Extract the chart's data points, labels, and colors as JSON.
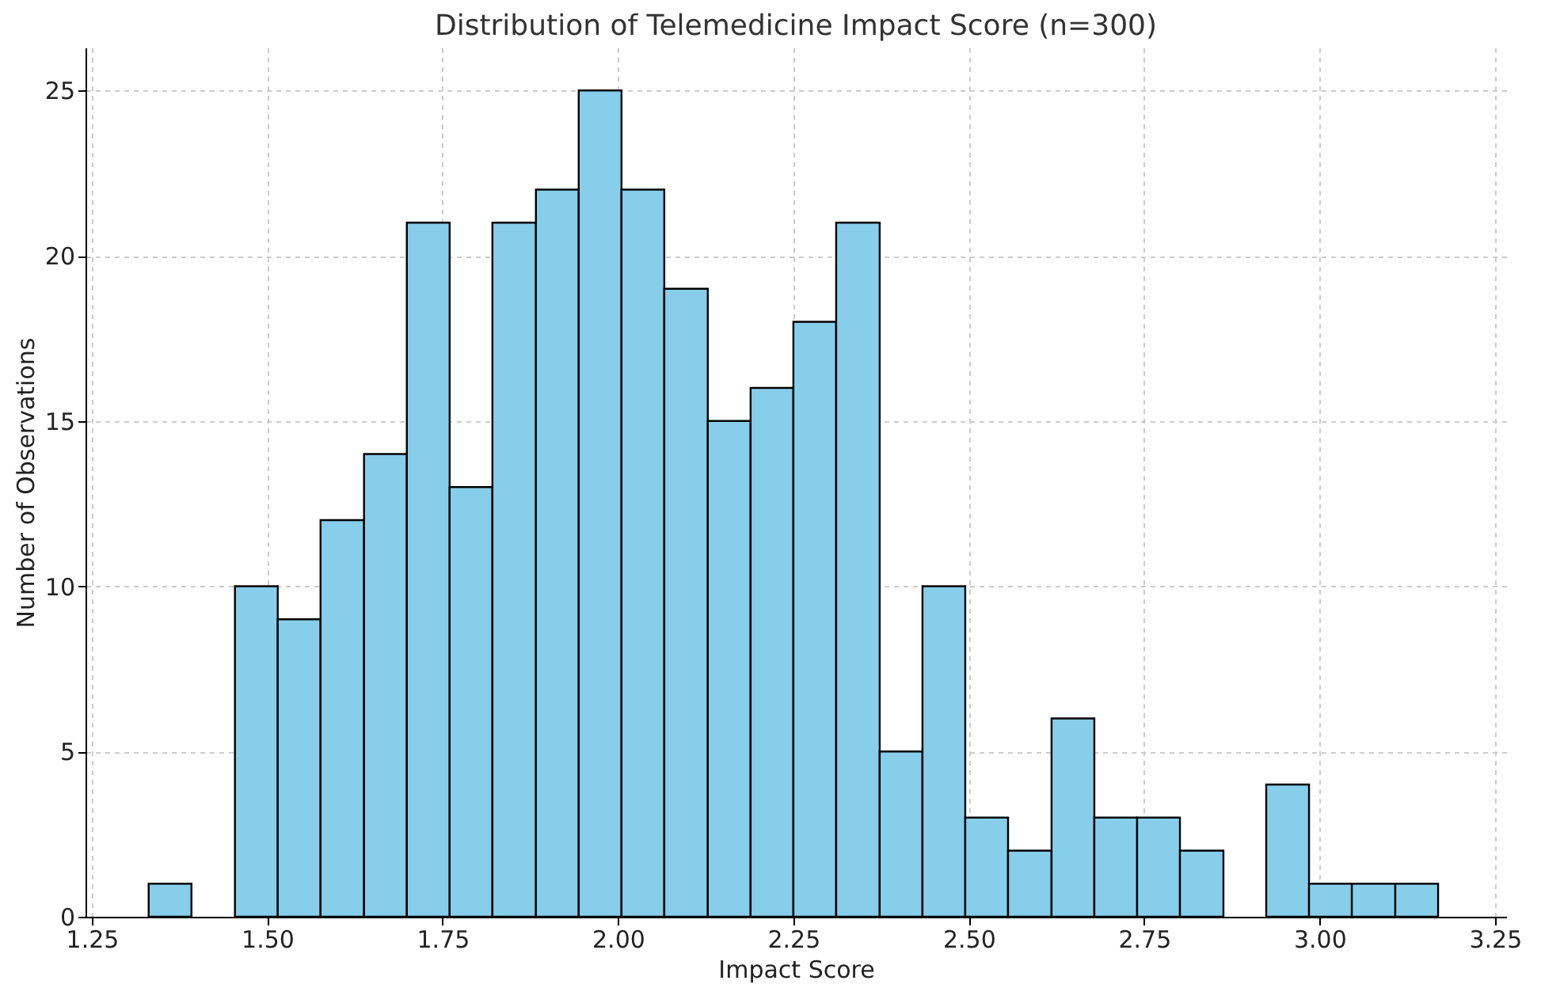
{
  "chart_data": {
    "type": "histogram",
    "title": "Distribution of Telemedicine Impact Score (n=300)",
    "xlabel": "Impact Score",
    "ylabel": "Number of Observations",
    "bins": [
      1.331,
      1.392,
      1.454,
      1.515,
      1.576,
      1.638,
      1.699,
      1.76,
      1.821,
      1.883,
      1.944,
      2.005,
      2.066,
      2.128,
      2.189,
      2.25,
      2.311,
      2.373,
      2.434,
      2.495,
      2.556,
      2.618,
      2.679,
      2.74,
      2.801,
      2.863,
      2.924,
      2.985,
      3.046,
      3.108,
      3.169
    ],
    "values": [
      1,
      0,
      10,
      9,
      12,
      14,
      21,
      13,
      21,
      22,
      25,
      22,
      19,
      15,
      16,
      18,
      21,
      5,
      10,
      3,
      2,
      6,
      3,
      3,
      2,
      0,
      4,
      1,
      1,
      1
    ],
    "color": "#87ceeb",
    "xlim": [
      1.241,
      3.266
    ],
    "xticks": [
      1.25,
      {
        "value": 1.5,
        "label": "1.50"
      },
      1.75,
      {
        "value": 2.0,
        "label": "2.00"
      },
      2.25,
      {
        "value": 2.5,
        "label": "2.50"
      },
      2.75,
      {
        "value": 3.0,
        "label": "3.00"
      },
      3.25
    ],
    "ylim": [
      0,
      26.3
    ],
    "yticks": [
      0,
      5,
      10,
      15,
      20,
      25
    ],
    "grid": true
  }
}
